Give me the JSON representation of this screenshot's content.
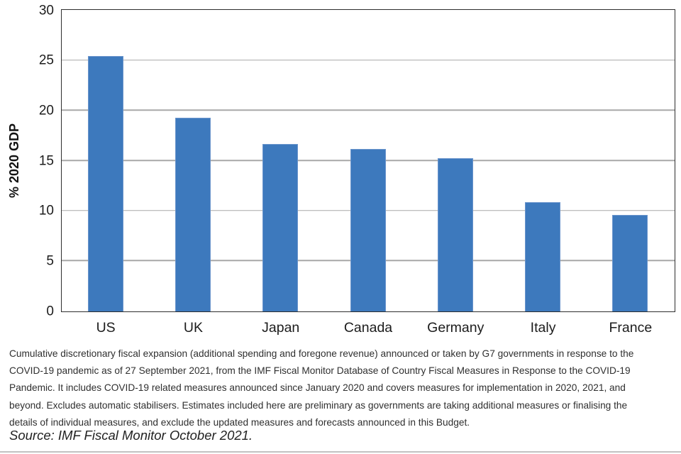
{
  "chart_data": {
    "type": "bar",
    "categories": [
      "US",
      "UK",
      "Japan",
      "Canada",
      "Germany",
      "Italy",
      "France"
    ],
    "values": [
      25.5,
      19.3,
      16.7,
      16.2,
      15.3,
      10.9,
      9.6
    ],
    "title": "",
    "xlabel": "",
    "ylabel": "% 2020 GDP",
    "ylim": [
      0,
      30
    ],
    "yticks": [
      0,
      5,
      10,
      15,
      20,
      25,
      30
    ],
    "grid": true,
    "legend": "none",
    "bar_color": "#3d79bd",
    "bar_border_color": "#6b95cc",
    "gridline_color": "#a8a8a8",
    "frame_color": "#2d2d2d"
  },
  "caption": {
    "lines": [
      "Cumulative discretionary fiscal expansion (additional spending and foregone revenue) announced or taken by G7 governments in response to the",
      "COVID-19 pandemic as of 27 September 2021, from the IMF Fiscal Monitor Database of Country Fiscal Measures in Response to the COVID-19",
      "Pandemic. It includes COVID-19 related measures announced since January 2020 and covers measures for implementation in 2020, 2021, and",
      "beyond. Excludes automatic stabilisers. Estimates included here are preliminary as governments are taking additional measures or finalising the",
      "details of individual measures, and exclude the updated measures and forecasts announced in this Budget."
    ]
  },
  "source_note": "Source: IMF Fiscal Monitor October 2021."
}
